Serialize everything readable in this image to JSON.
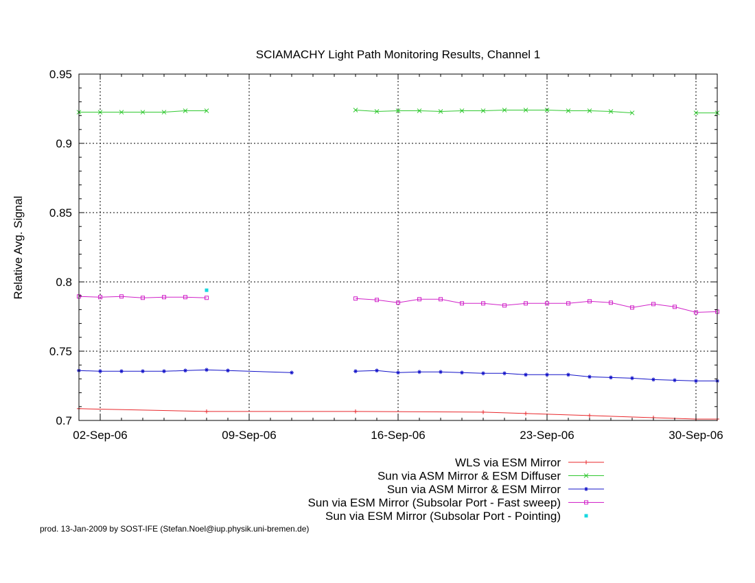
{
  "chart_data": {
    "type": "line",
    "title": "SCIAMACHY Light Path Monitoring Results, Channel 1",
    "xlabel": "",
    "ylabel": "Relative Avg. Signal",
    "x_range": [
      "2006-09-01",
      "2006-10-01"
    ],
    "ylim": [
      0.7,
      0.95
    ],
    "y_ticks": [
      0.7,
      0.75,
      0.8,
      0.85,
      0.9,
      0.95
    ],
    "y_tick_labels": [
      "0.7",
      "0.75",
      "0.8",
      "0.85",
      "0.9",
      "0.95"
    ],
    "x_ticks": [
      "2006-09-02",
      "2006-09-09",
      "2006-09-16",
      "2006-09-23",
      "2006-09-30"
    ],
    "x_tick_labels": [
      "02-Sep-06",
      "09-Sep-06",
      "16-Sep-06",
      "23-Sep-06",
      "30-Sep-06"
    ],
    "grid": true,
    "legend_position": "below",
    "series": [
      {
        "name": "WLS via ESM Mirror",
        "color": "#e8262a",
        "marker": "plus",
        "x": [
          "2006-09-01",
          "2006-09-07",
          "2006-09-14",
          "2006-09-20",
          "2006-09-22",
          "2006-09-25",
          "2006-09-28",
          "2006-09-30",
          "2006-10-01"
        ],
        "y": [
          0.7085,
          0.7065,
          0.7065,
          0.706,
          0.705,
          0.7035,
          0.702,
          0.701,
          0.701
        ]
      },
      {
        "name": "Sun via ASM Mirror & ESM Diffuser",
        "color": "#2ec82e",
        "marker": "cross",
        "x": [
          "2006-09-01",
          "2006-09-02",
          "2006-09-03",
          "2006-09-04",
          "2006-09-05",
          "2006-09-06",
          "2006-09-07",
          "2006-09-14",
          "2006-09-15",
          "2006-09-16",
          "2006-09-17",
          "2006-09-18",
          "2006-09-19",
          "2006-09-20",
          "2006-09-21",
          "2006-09-22",
          "2006-09-23",
          "2006-09-24",
          "2006-09-25",
          "2006-09-26",
          "2006-09-27",
          "2006-09-30",
          "2006-10-01"
        ],
        "y": [
          0.9225,
          0.9225,
          0.9225,
          0.9225,
          0.9225,
          0.9235,
          0.9235,
          0.924,
          0.923,
          0.9235,
          0.9235,
          0.923,
          0.9235,
          0.9235,
          0.924,
          0.924,
          0.924,
          0.9235,
          0.9235,
          0.923,
          0.922,
          0.922,
          0.922
        ]
      },
      {
        "name": "Sun via ASM Mirror & ESM Mirror",
        "color": "#1010c8",
        "marker": "star",
        "x": [
          "2006-09-01",
          "2006-09-02",
          "2006-09-03",
          "2006-09-04",
          "2006-09-05",
          "2006-09-06",
          "2006-09-07",
          "2006-09-08",
          "2006-09-11",
          "2006-09-14",
          "2006-09-15",
          "2006-09-16",
          "2006-09-17",
          "2006-09-18",
          "2006-09-19",
          "2006-09-20",
          "2006-09-21",
          "2006-09-22",
          "2006-09-23",
          "2006-09-24",
          "2006-09-25",
          "2006-09-26",
          "2006-09-27",
          "2006-09-28",
          "2006-09-29",
          "2006-09-30",
          "2006-10-01"
        ],
        "y": [
          0.736,
          0.7355,
          0.7355,
          0.7355,
          0.7355,
          0.736,
          0.7365,
          0.736,
          0.7345,
          0.7355,
          0.736,
          0.7345,
          0.735,
          0.735,
          0.7345,
          0.734,
          0.734,
          0.733,
          0.733,
          0.733,
          0.7315,
          0.731,
          0.7305,
          0.7295,
          0.729,
          0.7285,
          0.7285
        ]
      },
      {
        "name": "Sun via ESM Mirror (Subsolar Port - Fast sweep)",
        "color": "#d020c8",
        "marker": "square",
        "x": [
          "2006-09-01",
          "2006-09-02",
          "2006-09-03",
          "2006-09-04",
          "2006-09-05",
          "2006-09-06",
          "2006-09-07",
          "2006-09-14",
          "2006-09-15",
          "2006-09-16",
          "2006-09-17",
          "2006-09-18",
          "2006-09-19",
          "2006-09-20",
          "2006-09-21",
          "2006-09-22",
          "2006-09-23",
          "2006-09-24",
          "2006-09-25",
          "2006-09-26",
          "2006-09-27",
          "2006-09-28",
          "2006-09-29",
          "2006-09-30",
          "2006-10-01"
        ],
        "y": [
          0.7895,
          0.789,
          0.7895,
          0.7885,
          0.789,
          0.789,
          0.7885,
          0.788,
          0.787,
          0.785,
          0.7875,
          0.7875,
          0.7845,
          0.7845,
          0.783,
          0.7845,
          0.7845,
          0.7845,
          0.786,
          0.785,
          0.7815,
          0.784,
          0.782,
          0.778,
          0.7785
        ]
      },
      {
        "name": "Sun via ESM Mirror (Subsolar Port - Pointing)",
        "color": "#16d8e0",
        "marker": "dot",
        "x": [
          "2006-09-07"
        ],
        "y": [
          0.794
        ]
      }
    ]
  },
  "footer": {
    "credit": "prod. 13-Jan-2009 by SOST-IFE (Stefan.Noel@iup.physik.uni-bremen.de)"
  }
}
